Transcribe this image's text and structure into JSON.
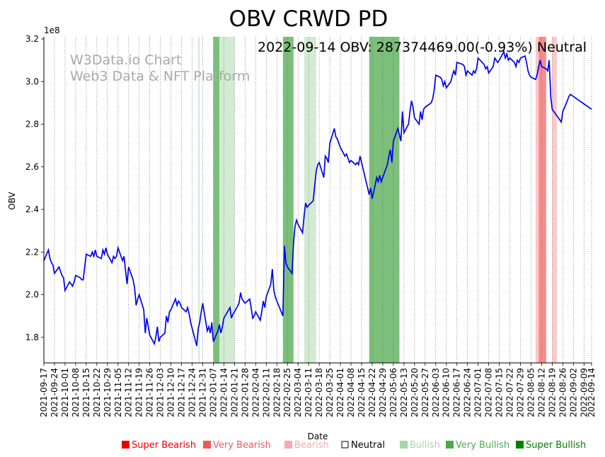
{
  "chart_data": {
    "type": "line",
    "title": "OBV CRWD PD",
    "annotation": "2022-09-14 OBV: 287374469.00(-0.93%) Neutral",
    "watermark": [
      "W3Data.io Chart",
      "Web3 Data & NFT Platform"
    ],
    "xlabel": "Date",
    "ylabel": "OBV",
    "y_multiplier": "1e8",
    "ylim": [
      1.68,
      3.21
    ],
    "y_ticks": [
      "1.8",
      "2.0",
      "2.2",
      "2.4",
      "2.6",
      "2.8",
      "3.0",
      "3.2"
    ],
    "x_range": [
      "2021-09-17",
      "2022-09-14"
    ],
    "x_ticks": [
      "2021-09-17",
      "2021-09-24",
      "2021-10-01",
      "2021-10-08",
      "2021-10-15",
      "2021-10-22",
      "2021-10-29",
      "2021-11-05",
      "2021-11-12",
      "2021-11-19",
      "2021-11-26",
      "2021-12-03",
      "2021-12-10",
      "2021-12-17",
      "2021-12-24",
      "2021-12-31",
      "2022-01-07",
      "2022-01-14",
      "2022-01-21",
      "2022-01-28",
      "2022-02-04",
      "2022-02-11",
      "2022-02-18",
      "2022-02-25",
      "2022-03-04",
      "2022-03-11",
      "2022-03-18",
      "2022-03-25",
      "2022-04-01",
      "2022-04-08",
      "2022-04-15",
      "2022-04-22",
      "2022-04-29",
      "2022-05-06",
      "2022-05-13",
      "2022-05-20",
      "2022-05-27",
      "2022-06-03",
      "2022-06-10",
      "2022-06-17",
      "2022-06-24",
      "2022-07-01",
      "2022-07-08",
      "2022-07-15",
      "2022-07-22",
      "2022-07-29",
      "2022-08-05",
      "2022-08-12",
      "2022-08-19",
      "2022-08-26",
      "2022-09-02",
      "2022-09-09",
      "2022-09-14"
    ],
    "series": [
      {
        "color": "#0000ee",
        "points": [
          [
            "2021-09-17",
            2.16
          ],
          [
            "2021-09-20",
            2.21
          ],
          [
            "2021-09-21",
            2.17
          ],
          [
            "2021-09-22",
            2.15
          ],
          [
            "2021-09-23",
            2.14
          ],
          [
            "2021-09-24",
            2.1
          ],
          [
            "2021-09-27",
            2.13
          ],
          [
            "2021-09-28",
            2.11
          ],
          [
            "2021-09-29",
            2.09
          ],
          [
            "2021-09-30",
            2.08
          ],
          [
            "2021-10-01",
            2.02
          ],
          [
            "2021-10-04",
            2.06
          ],
          [
            "2021-10-05",
            2.05
          ],
          [
            "2021-10-06",
            2.04
          ],
          [
            "2021-10-07",
            2.06
          ],
          [
            "2021-10-08",
            2.09
          ],
          [
            "2021-10-11",
            2.08
          ],
          [
            "2021-10-12",
            2.07
          ],
          [
            "2021-10-13",
            2.07
          ],
          [
            "2021-10-14",
            2.13
          ],
          [
            "2021-10-15",
            2.19
          ],
          [
            "2021-10-18",
            2.18
          ],
          [
            "2021-10-19",
            2.2
          ],
          [
            "2021-10-20",
            2.18
          ],
          [
            "2021-10-21",
            2.21
          ],
          [
            "2021-10-22",
            2.18
          ],
          [
            "2021-10-25",
            2.17
          ],
          [
            "2021-10-26",
            2.21
          ],
          [
            "2021-10-27",
            2.19
          ],
          [
            "2021-10-28",
            2.22
          ],
          [
            "2021-10-29",
            2.19
          ],
          [
            "2021-11-01",
            2.15
          ],
          [
            "2021-11-02",
            2.18
          ],
          [
            "2021-11-03",
            2.17
          ],
          [
            "2021-11-04",
            2.18
          ],
          [
            "2021-11-05",
            2.22
          ],
          [
            "2021-11-08",
            2.16
          ],
          [
            "2021-11-09",
            2.18
          ],
          [
            "2021-11-10",
            2.11
          ],
          [
            "2021-11-11",
            2.05
          ],
          [
            "2021-11-12",
            2.13
          ],
          [
            "2021-11-15",
            2.07
          ],
          [
            "2021-11-16",
            2.03
          ],
          [
            "2021-11-17",
            1.95
          ],
          [
            "2021-11-18",
            1.98
          ],
          [
            "2021-11-19",
            2.0
          ],
          [
            "2021-11-22",
            1.93
          ],
          [
            "2021-11-23",
            1.82
          ],
          [
            "2021-11-24",
            1.89
          ],
          [
            "2021-11-26",
            1.81
          ],
          [
            "2021-11-29",
            1.77
          ],
          [
            "2021-11-30",
            1.8
          ],
          [
            "2021-12-01",
            1.85
          ],
          [
            "2021-12-02",
            1.78
          ],
          [
            "2021-12-03",
            1.8
          ],
          [
            "2021-12-06",
            1.82
          ],
          [
            "2021-12-07",
            1.9
          ],
          [
            "2021-12-08",
            1.87
          ],
          [
            "2021-12-09",
            1.92
          ],
          [
            "2021-12-10",
            1.93
          ],
          [
            "2021-12-13",
            1.98
          ],
          [
            "2021-12-14",
            1.95
          ],
          [
            "2021-12-15",
            1.97
          ],
          [
            "2021-12-16",
            1.96
          ],
          [
            "2021-12-17",
            1.94
          ],
          [
            "2021-12-20",
            1.92
          ],
          [
            "2021-12-21",
            1.94
          ],
          [
            "2021-12-22",
            1.91
          ],
          [
            "2021-12-23",
            1.87
          ],
          [
            "2021-12-27",
            1.76
          ],
          [
            "2021-12-28",
            1.84
          ],
          [
            "2021-12-29",
            1.87
          ],
          [
            "2021-12-30",
            1.92
          ],
          [
            "2021-12-31",
            1.96
          ],
          [
            "2022-01-03",
            1.83
          ],
          [
            "2022-01-04",
            1.85
          ],
          [
            "2022-01-05",
            1.82
          ],
          [
            "2022-01-06",
            1.87
          ],
          [
            "2022-01-07",
            1.78
          ],
          [
            "2022-01-10",
            1.83
          ],
          [
            "2022-01-11",
            1.86
          ],
          [
            "2022-01-12",
            1.82
          ],
          [
            "2022-01-13",
            1.85
          ],
          [
            "2022-01-14",
            1.89
          ],
          [
            "2022-01-18",
            1.94
          ],
          [
            "2022-01-19",
            1.89
          ],
          [
            "2022-01-20",
            1.91
          ],
          [
            "2022-01-21",
            1.92
          ],
          [
            "2022-01-24",
            1.96
          ],
          [
            "2022-01-25",
            2.01
          ],
          [
            "2022-01-26",
            1.98
          ],
          [
            "2022-01-27",
            1.97
          ],
          [
            "2022-01-28",
            1.96
          ],
          [
            "2022-01-31",
            1.98
          ],
          [
            "2022-02-01",
            1.94
          ],
          [
            "2022-02-02",
            1.89
          ],
          [
            "2022-02-03",
            1.9
          ],
          [
            "2022-02-04",
            1.92
          ],
          [
            "2022-02-07",
            1.88
          ],
          [
            "2022-02-08",
            1.92
          ],
          [
            "2022-02-09",
            1.97
          ],
          [
            "2022-02-10",
            1.94
          ],
          [
            "2022-02-11",
            1.99
          ],
          [
            "2022-02-14",
            2.05
          ],
          [
            "2022-02-15",
            2.12
          ],
          [
            "2022-02-16",
            2.02
          ],
          [
            "2022-02-17",
            1.99
          ],
          [
            "2022-02-18",
            1.97
          ],
          [
            "2022-02-22",
            1.9
          ],
          [
            "2022-02-23",
            2.23
          ],
          [
            "2022-02-24",
            2.15
          ],
          [
            "2022-02-25",
            2.13
          ],
          [
            "2022-02-28",
            2.1
          ],
          [
            "2022-03-01",
            2.24
          ],
          [
            "2022-03-02",
            2.32
          ],
          [
            "2022-03-03",
            2.35
          ],
          [
            "2022-03-04",
            2.33
          ],
          [
            "2022-03-07",
            2.29
          ],
          [
            "2022-03-08",
            2.37
          ],
          [
            "2022-03-09",
            2.43
          ],
          [
            "2022-03-10",
            2.41
          ],
          [
            "2022-03-11",
            2.42
          ],
          [
            "2022-03-14",
            2.44
          ],
          [
            "2022-03-15",
            2.51
          ],
          [
            "2022-03-16",
            2.58
          ],
          [
            "2022-03-17",
            2.61
          ],
          [
            "2022-03-18",
            2.62
          ],
          [
            "2022-03-21",
            2.55
          ],
          [
            "2022-03-22",
            2.65
          ],
          [
            "2022-03-23",
            2.64
          ],
          [
            "2022-03-24",
            2.62
          ],
          [
            "2022-03-25",
            2.71
          ],
          [
            "2022-03-28",
            2.78
          ],
          [
            "2022-03-29",
            2.74
          ],
          [
            "2022-03-30",
            2.73
          ],
          [
            "2022-03-31",
            2.71
          ],
          [
            "2022-04-01",
            2.69
          ],
          [
            "2022-04-04",
            2.65
          ],
          [
            "2022-04-05",
            2.66
          ],
          [
            "2022-04-06",
            2.64
          ],
          [
            "2022-04-07",
            2.62
          ],
          [
            "2022-04-08",
            2.63
          ],
          [
            "2022-04-11",
            2.61
          ],
          [
            "2022-04-12",
            2.62
          ],
          [
            "2022-04-13",
            2.61
          ],
          [
            "2022-04-14",
            2.65
          ],
          [
            "2022-04-18",
            2.53
          ],
          [
            "2022-04-19",
            2.5
          ],
          [
            "2022-04-20",
            2.47
          ],
          [
            "2022-04-21",
            2.5
          ],
          [
            "2022-04-22",
            2.45
          ],
          [
            "2022-04-25",
            2.55
          ],
          [
            "2022-04-26",
            2.53
          ],
          [
            "2022-04-27",
            2.56
          ],
          [
            "2022-04-28",
            2.53
          ],
          [
            "2022-04-29",
            2.55
          ],
          [
            "2022-05-02",
            2.61
          ],
          [
            "2022-05-03",
            2.65
          ],
          [
            "2022-05-04",
            2.68
          ],
          [
            "2022-05-05",
            2.62
          ],
          [
            "2022-05-06",
            2.72
          ],
          [
            "2022-05-09",
            2.78
          ],
          [
            "2022-05-10",
            2.75
          ],
          [
            "2022-05-11",
            2.72
          ],
          [
            "2022-05-12",
            2.86
          ],
          [
            "2022-05-13",
            2.76
          ],
          [
            "2022-05-16",
            2.8
          ],
          [
            "2022-05-17",
            2.86
          ],
          [
            "2022-05-18",
            2.91
          ],
          [
            "2022-05-19",
            2.88
          ],
          [
            "2022-05-20",
            2.83
          ],
          [
            "2022-05-23",
            2.8
          ],
          [
            "2022-05-24",
            2.86
          ],
          [
            "2022-05-25",
            2.82
          ],
          [
            "2022-05-26",
            2.87
          ],
          [
            "2022-05-27",
            2.88
          ],
          [
            "2022-05-31",
            2.9
          ],
          [
            "2022-06-01",
            2.92
          ],
          [
            "2022-06-02",
            2.96
          ],
          [
            "2022-06-03",
            3.03
          ],
          [
            "2022-06-06",
            3.02
          ],
          [
            "2022-06-07",
            3.01
          ],
          [
            "2022-06-08",
            2.98
          ],
          [
            "2022-06-09",
            3.0
          ],
          [
            "2022-06-10",
            2.97
          ],
          [
            "2022-06-13",
            3.0
          ],
          [
            "2022-06-14",
            3.03
          ],
          [
            "2022-06-15",
            3.05
          ],
          [
            "2022-06-16",
            3.03
          ],
          [
            "2022-06-17",
            3.09
          ],
          [
            "2022-06-21",
            3.08
          ],
          [
            "2022-06-22",
            3.07
          ],
          [
            "2022-06-23",
            3.03
          ],
          [
            "2022-06-24",
            3.05
          ],
          [
            "2022-06-27",
            3.03
          ],
          [
            "2022-06-28",
            3.05
          ],
          [
            "2022-06-29",
            3.04
          ],
          [
            "2022-06-30",
            3.06
          ],
          [
            "2022-07-01",
            3.11
          ],
          [
            "2022-07-05",
            3.08
          ],
          [
            "2022-07-06",
            3.06
          ],
          [
            "2022-07-07",
            3.07
          ],
          [
            "2022-07-08",
            3.04
          ],
          [
            "2022-07-11",
            3.07
          ],
          [
            "2022-07-12",
            3.11
          ],
          [
            "2022-07-13",
            3.1
          ],
          [
            "2022-07-14",
            3.09
          ],
          [
            "2022-07-15",
            3.1
          ],
          [
            "2022-07-18",
            3.14
          ],
          [
            "2022-07-19",
            3.11
          ],
          [
            "2022-07-20",
            3.13
          ],
          [
            "2022-07-21",
            3.1
          ],
          [
            "2022-07-22",
            3.11
          ],
          [
            "2022-07-25",
            3.09
          ],
          [
            "2022-07-26",
            3.07
          ],
          [
            "2022-07-27",
            3.1
          ],
          [
            "2022-07-28",
            3.09
          ],
          [
            "2022-07-29",
            3.11
          ],
          [
            "2022-08-01",
            3.12
          ],
          [
            "2022-08-02",
            3.09
          ],
          [
            "2022-08-03",
            3.05
          ],
          [
            "2022-08-04",
            3.03
          ],
          [
            "2022-08-05",
            3.02
          ],
          [
            "2022-08-08",
            3.01
          ],
          [
            "2022-08-09",
            3.03
          ],
          [
            "2022-08-10",
            3.07
          ],
          [
            "2022-08-11",
            3.1
          ],
          [
            "2022-08-12",
            3.07
          ],
          [
            "2022-08-15",
            3.06
          ],
          [
            "2022-08-16",
            3.05
          ],
          [
            "2022-08-17",
            3.1
          ],
          [
            "2022-08-18",
            2.93
          ],
          [
            "2022-08-19",
            2.87
          ],
          [
            "2022-08-22",
            2.84
          ],
          [
            "2022-08-23",
            2.83
          ],
          [
            "2022-08-24",
            2.82
          ],
          [
            "2022-08-25",
            2.81
          ],
          [
            "2022-08-26",
            2.86
          ],
          [
            "2022-08-29",
            2.91
          ],
          [
            "2022-08-30",
            2.93
          ],
          [
            "2022-08-31",
            2.94
          ],
          [
            "2022-09-14",
            2.87
          ]
        ]
      }
    ],
    "bands": [
      {
        "start": "2021-12-28",
        "end": "2021-12-29",
        "level": "Bullish"
      },
      {
        "start": "2022-01-07",
        "end": "2022-01-11",
        "level": "Very Bullish"
      },
      {
        "start": "2022-01-11",
        "end": "2022-01-21",
        "level": "Bullish"
      },
      {
        "start": "2022-02-22",
        "end": "2022-03-01",
        "level": "Very Bullish"
      },
      {
        "start": "2022-03-08",
        "end": "2022-03-16",
        "level": "Bullish"
      },
      {
        "start": "2022-04-20",
        "end": "2022-05-10",
        "level": "Very Bullish"
      },
      {
        "start": "2022-08-08",
        "end": "2022-08-10",
        "level": "Bearish"
      },
      {
        "start": "2022-08-10",
        "end": "2022-08-15",
        "level": "Very Bearish"
      },
      {
        "start": "2022-08-19",
        "end": "2022-08-22",
        "level": "Bearish"
      }
    ],
    "legend": [
      {
        "label": "Super Bearish",
        "color": "#ee0000"
      },
      {
        "label": "Very Bearish",
        "color": "#f05858"
      },
      {
        "label": "Bearish",
        "color": "#f4aaaa"
      },
      {
        "label": "Neutral",
        "color": "#000000"
      },
      {
        "label": "Bullish",
        "color": "#a6d7a6"
      },
      {
        "label": "Very Bullish",
        "color": "#4ea94e"
      },
      {
        "label": "Super Bullish",
        "color": "#008000"
      }
    ],
    "band_colors": {
      "Bullish": "#d2ebd2",
      "Very Bullish": "#7bbf7b",
      "Bearish": "#fcc8c8",
      "Very Bearish": "#f68c8c"
    }
  }
}
